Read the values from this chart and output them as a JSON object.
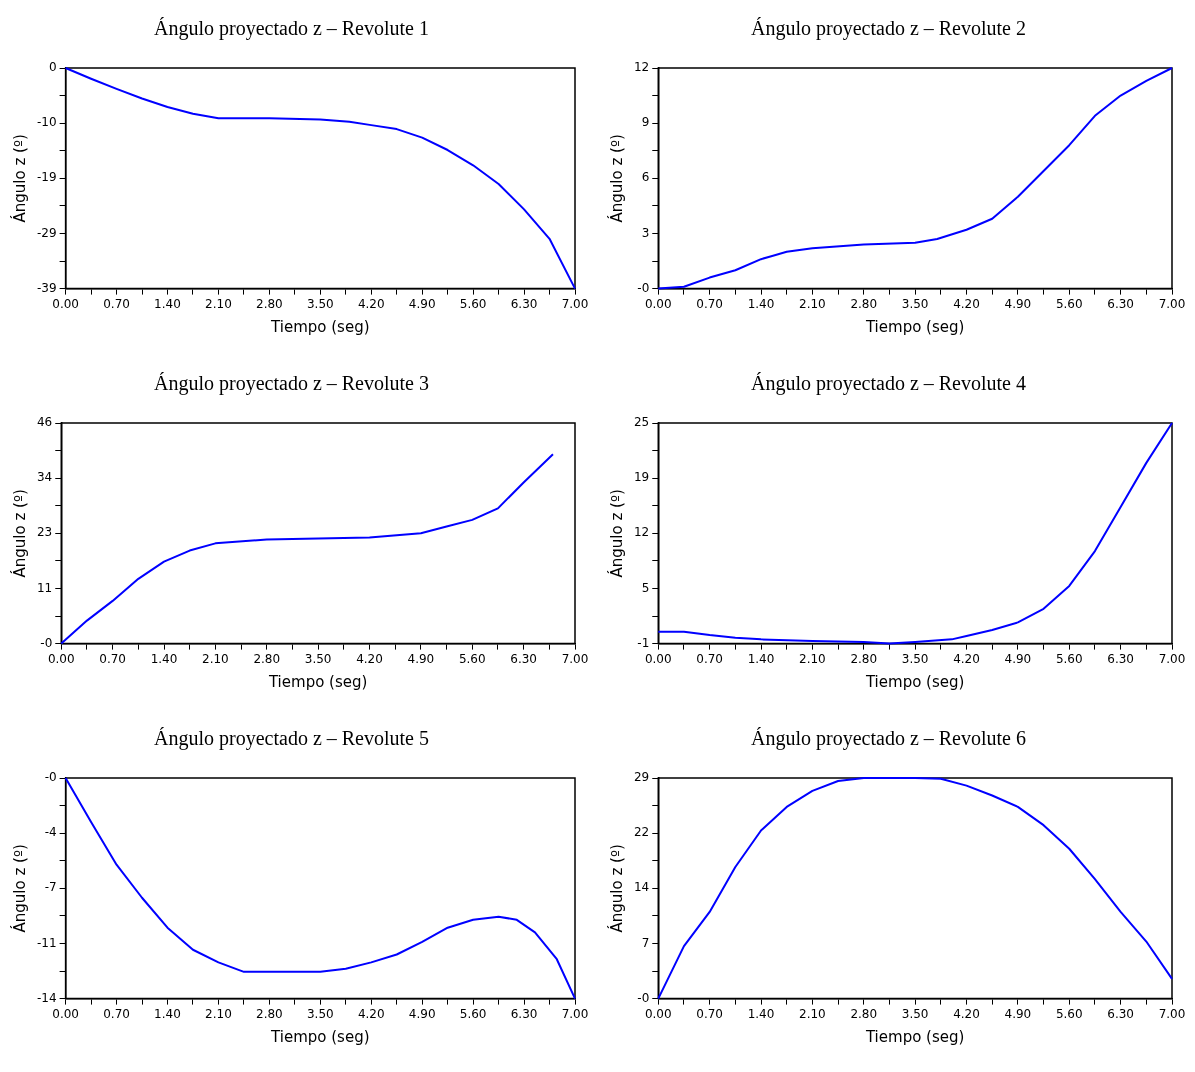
{
  "chart_data": [
    {
      "type": "line",
      "title": "Ángulo proyectado z – Revolute 1",
      "xlabel": "Tiempo (seg)",
      "ylabel": "Ángulo z (º)",
      "color": "#0000ff",
      "marker": "none",
      "grid": false,
      "x": [
        0,
        0.35,
        0.7,
        1.05,
        1.4,
        1.75,
        2.1,
        2.8,
        3.5,
        3.9,
        4.2,
        4.55,
        4.9,
        5.25,
        5.6,
        5.95,
        6.3,
        6.65,
        7
      ],
      "values": [
        0,
        -1.9,
        -3.7,
        -5.4,
        -6.9,
        -8.1,
        -8.9,
        -8.9,
        -9.1,
        -9.5,
        -10.1,
        -10.8,
        -12.3,
        -14.5,
        -17.2,
        -20.5,
        -25,
        -30.2,
        -39
      ],
      "xlim": [
        0,
        7
      ],
      "ylim": [
        -39,
        0
      ],
      "xticks": [
        {
          "value": 0,
          "label": "0.00"
        },
        {
          "value": 0.35,
          "label": null
        },
        {
          "value": 0.7,
          "label": "0.70"
        },
        {
          "value": 1.05,
          "label": null
        },
        {
          "value": 1.4,
          "label": "1.40"
        },
        {
          "value": 1.75,
          "label": null
        },
        {
          "value": 2.1,
          "label": "2.10"
        },
        {
          "value": 2.45,
          "label": null
        },
        {
          "value": 2.8,
          "label": "2.80"
        },
        {
          "value": 3.15,
          "label": null
        },
        {
          "value": 3.5,
          "label": "3.50"
        },
        {
          "value": 3.85,
          "label": null
        },
        {
          "value": 4.2,
          "label": "4.20"
        },
        {
          "value": 4.55,
          "label": null
        },
        {
          "value": 4.9,
          "label": "4.90"
        },
        {
          "value": 5.25,
          "label": null
        },
        {
          "value": 5.6,
          "label": "5.60"
        },
        {
          "value": 5.95,
          "label": null
        },
        {
          "value": 6.3,
          "label": "6.30"
        },
        {
          "value": 6.65,
          "label": null
        },
        {
          "value": 7,
          "label": "7.00"
        }
      ],
      "yticks": [
        {
          "value": -39,
          "label": "-39"
        },
        {
          "value": -34.125,
          "label": null
        },
        {
          "value": -29.25,
          "label": "-29"
        },
        {
          "value": -24.375,
          "label": null
        },
        {
          "value": -19.5,
          "label": "-19"
        },
        {
          "value": -14.625,
          "label": null
        },
        {
          "value": -9.75,
          "label": "-10"
        },
        {
          "value": -4.875,
          "label": null
        },
        {
          "value": 0,
          "label": "0"
        }
      ]
    },
    {
      "type": "line",
      "title": "Ángulo proyectado z – Revolute 2",
      "xlabel": "Tiempo (seg)",
      "ylabel": "Ángulo z (º)",
      "color": "#0000ff",
      "marker": "none",
      "grid": false,
      "x": [
        0,
        0.35,
        0.7,
        1.05,
        1.4,
        1.75,
        2.1,
        2.8,
        3.5,
        3.8,
        4.2,
        4.55,
        4.9,
        5.25,
        5.6,
        5.95,
        6.3,
        6.65,
        7
      ],
      "values": [
        0,
        0.1,
        0.6,
        1.0,
        1.6,
        2.0,
        2.2,
        2.4,
        2.5,
        2.7,
        3.2,
        3.8,
        5.0,
        6.4,
        7.8,
        9.4,
        10.5,
        11.3,
        12
      ],
      "xlim": [
        0,
        7
      ],
      "ylim": [
        0,
        12
      ],
      "xticks": [
        {
          "value": 0,
          "label": "0.00"
        },
        {
          "value": 0.35,
          "label": null
        },
        {
          "value": 0.7,
          "label": "0.70"
        },
        {
          "value": 1.05,
          "label": null
        },
        {
          "value": 1.4,
          "label": "1.40"
        },
        {
          "value": 1.75,
          "label": null
        },
        {
          "value": 2.1,
          "label": "2.10"
        },
        {
          "value": 2.45,
          "label": null
        },
        {
          "value": 2.8,
          "label": "2.80"
        },
        {
          "value": 3.15,
          "label": null
        },
        {
          "value": 3.5,
          "label": "3.50"
        },
        {
          "value": 3.85,
          "label": null
        },
        {
          "value": 4.2,
          "label": "4.20"
        },
        {
          "value": 4.55,
          "label": null
        },
        {
          "value": 4.9,
          "label": "4.90"
        },
        {
          "value": 5.25,
          "label": null
        },
        {
          "value": 5.6,
          "label": "5.60"
        },
        {
          "value": 5.95,
          "label": null
        },
        {
          "value": 6.3,
          "label": "6.30"
        },
        {
          "value": 6.65,
          "label": null
        },
        {
          "value": 7,
          "label": "7.00"
        }
      ],
      "yticks": [
        {
          "value": 0,
          "label": "-0"
        },
        {
          "value": 1.5,
          "label": null
        },
        3,
        {
          "value": 4.5,
          "label": null
        },
        6,
        {
          "value": 7.5,
          "label": null
        },
        9,
        {
          "value": 10.5,
          "label": null
        },
        12
      ]
    },
    {
      "type": "line",
      "title": "Ángulo proyectado z – Revolute 3",
      "xlabel": "Tiempo (seg)",
      "ylabel": "Ángulo z (º)",
      "color": "#0000ff",
      "marker": "none",
      "grid": false,
      "x": [
        0,
        0.35,
        0.7,
        1.05,
        1.4,
        1.75,
        2.1,
        2.8,
        3.5,
        4.2,
        4.9,
        5.25,
        5.6,
        5.95,
        6.3,
        6.7
      ],
      "values": [
        0,
        4.8,
        8.9,
        13.5,
        17.1,
        19.4,
        20.9,
        21.7,
        21.9,
        22.1,
        23.0,
        24.4,
        25.8,
        28.2,
        33.6,
        39.5
      ],
      "xlim": [
        0,
        7
      ],
      "ylim": [
        0,
        46
      ],
      "xticks": [
        {
          "value": 0,
          "label": "0.00"
        },
        {
          "value": 0.35,
          "label": null
        },
        {
          "value": 0.7,
          "label": "0.70"
        },
        {
          "value": 1.05,
          "label": null
        },
        {
          "value": 1.4,
          "label": "1.40"
        },
        {
          "value": 1.75,
          "label": null
        },
        {
          "value": 2.1,
          "label": "2.10"
        },
        {
          "value": 2.45,
          "label": null
        },
        {
          "value": 2.8,
          "label": "2.80"
        },
        {
          "value": 3.15,
          "label": null
        },
        {
          "value": 3.5,
          "label": "3.50"
        },
        {
          "value": 3.85,
          "label": null
        },
        {
          "value": 4.2,
          "label": "4.20"
        },
        {
          "value": 4.55,
          "label": null
        },
        {
          "value": 4.9,
          "label": "4.90"
        },
        {
          "value": 5.25,
          "label": null
        },
        {
          "value": 5.6,
          "label": "5.60"
        },
        {
          "value": 5.95,
          "label": null
        },
        {
          "value": 6.3,
          "label": "6.30"
        },
        {
          "value": 6.65,
          "label": null
        },
        {
          "value": 7,
          "label": "7.00"
        }
      ],
      "yticks": [
        {
          "value": 0,
          "label": "-0"
        },
        {
          "value": 5.75,
          "label": null
        },
        {
          "value": 11.5,
          "label": "11"
        },
        {
          "value": 17.25,
          "label": null
        },
        23,
        {
          "value": 28.75,
          "label": null
        },
        {
          "value": 34.5,
          "label": "34"
        },
        {
          "value": 40.25,
          "label": null
        },
        46
      ]
    },
    {
      "type": "line",
      "title": "Ángulo proyectado z – Revolute 4",
      "xlabel": "Tiempo (seg)",
      "ylabel": "Ángulo z (º)",
      "color": "#0000ff",
      "marker": "none",
      "grid": false,
      "x": [
        0,
        0.35,
        0.7,
        1.05,
        1.4,
        2.1,
        2.8,
        3.15,
        3.5,
        4.0,
        4.2,
        4.55,
        4.9,
        5.25,
        5.6,
        5.95,
        6.3,
        6.65,
        7
      ],
      "values": [
        0.4,
        0.4,
        0.0,
        -0.3,
        -0.5,
        -0.7,
        -0.8,
        -1.0,
        -0.8,
        -0.5,
        -0.1,
        0.6,
        1.5,
        3.1,
        5.8,
        9.9,
        15.1,
        20.3,
        25
      ],
      "xlim": [
        0,
        7
      ],
      "ylim": [
        -1,
        25
      ],
      "xticks": [
        {
          "value": 0,
          "label": "0.00"
        },
        {
          "value": 0.35,
          "label": null
        },
        {
          "value": 0.7,
          "label": "0.70"
        },
        {
          "value": 1.05,
          "label": null
        },
        {
          "value": 1.4,
          "label": "1.40"
        },
        {
          "value": 1.75,
          "label": null
        },
        {
          "value": 2.1,
          "label": "2.10"
        },
        {
          "value": 2.45,
          "label": null
        },
        {
          "value": 2.8,
          "label": "2.80"
        },
        {
          "value": 3.15,
          "label": null
        },
        {
          "value": 3.5,
          "label": "3.50"
        },
        {
          "value": 3.85,
          "label": null
        },
        {
          "value": 4.2,
          "label": "4.20"
        },
        {
          "value": 4.55,
          "label": null
        },
        {
          "value": 4.9,
          "label": "4.90"
        },
        {
          "value": 5.25,
          "label": null
        },
        {
          "value": 5.6,
          "label": "5.60"
        },
        {
          "value": 5.95,
          "label": null
        },
        {
          "value": 6.3,
          "label": "6.30"
        },
        {
          "value": 6.65,
          "label": null
        },
        {
          "value": 7,
          "label": "7.00"
        }
      ],
      "yticks": [
        -1,
        {
          "value": 2.25,
          "label": null
        },
        {
          "value": 5.5,
          "label": "5"
        },
        {
          "value": 8.75,
          "label": null
        },
        12,
        {
          "value": 15.25,
          "label": null
        },
        {
          "value": 18.5,
          "label": "19"
        },
        {
          "value": 21.75,
          "label": null
        },
        25
      ]
    },
    {
      "type": "line",
      "title": "Ángulo proyectado z – Revolute 5",
      "xlabel": "Tiempo (seg)",
      "ylabel": "Ángulo z (º)",
      "color": "#0000ff",
      "marker": "none",
      "grid": false,
      "x": [
        0,
        0.35,
        0.7,
        1.05,
        1.4,
        1.75,
        2.1,
        2.45,
        2.8,
        3.5,
        3.85,
        4.2,
        4.55,
        4.9,
        5.25,
        5.6,
        5.95,
        6.2,
        6.45,
        6.75,
        7
      ],
      "values": [
        0,
        -2.8,
        -5.5,
        -7.6,
        -9.5,
        -10.9,
        -11.7,
        -12.3,
        -12.3,
        -12.3,
        -12.1,
        -11.7,
        -11.2,
        -10.4,
        -9.5,
        -9.0,
        -8.8,
        -9.0,
        -9.8,
        -11.5,
        -14
      ],
      "xlim": [
        0,
        7
      ],
      "ylim": [
        -14,
        0
      ],
      "xticks": [
        {
          "value": 0,
          "label": "0.00"
        },
        {
          "value": 0.35,
          "label": null
        },
        {
          "value": 0.7,
          "label": "0.70"
        },
        {
          "value": 1.05,
          "label": null
        },
        {
          "value": 1.4,
          "label": "1.40"
        },
        {
          "value": 1.75,
          "label": null
        },
        {
          "value": 2.1,
          "label": "2.10"
        },
        {
          "value": 2.45,
          "label": null
        },
        {
          "value": 2.8,
          "label": "2.80"
        },
        {
          "value": 3.15,
          "label": null
        },
        {
          "value": 3.5,
          "label": "3.50"
        },
        {
          "value": 3.85,
          "label": null
        },
        {
          "value": 4.2,
          "label": "4.20"
        },
        {
          "value": 4.55,
          "label": null
        },
        {
          "value": 4.9,
          "label": "4.90"
        },
        {
          "value": 5.25,
          "label": null
        },
        {
          "value": 5.6,
          "label": "5.60"
        },
        {
          "value": 5.95,
          "label": null
        },
        {
          "value": 6.3,
          "label": "6.30"
        },
        {
          "value": 6.65,
          "label": null
        },
        {
          "value": 7,
          "label": "7.00"
        }
      ],
      "yticks": [
        -14,
        {
          "value": -12.25,
          "label": null
        },
        {
          "value": -10.5,
          "label": "-11"
        },
        {
          "value": -8.75,
          "label": null
        },
        -7,
        {
          "value": -5.25,
          "label": null
        },
        {
          "value": -3.5,
          "label": "-4"
        },
        {
          "value": -1.75,
          "label": null
        },
        {
          "value": 0,
          "label": "-0"
        }
      ]
    },
    {
      "type": "line",
      "title": "Ángulo proyectado z – Revolute 6",
      "xlabel": "Tiempo (seg)",
      "ylabel": "Ángulo z (º)",
      "color": "#0000ff",
      "marker": "none",
      "grid": false,
      "x": [
        0,
        0.35,
        0.7,
        1.05,
        1.4,
        1.75,
        2.1,
        2.45,
        2.8,
        3.5,
        3.85,
        4.2,
        4.55,
        4.9,
        5.25,
        5.6,
        5.95,
        6.3,
        6.65,
        7
      ],
      "values": [
        0,
        6.9,
        11.4,
        17.3,
        22.1,
        25.2,
        27.3,
        28.6,
        29,
        29,
        28.9,
        28,
        26.7,
        25.2,
        22.8,
        19.7,
        15.7,
        11.4,
        7.5,
        2.6
      ],
      "xlim": [
        0,
        7
      ],
      "ylim": [
        0,
        29
      ],
      "xticks": [
        {
          "value": 0,
          "label": "0.00"
        },
        {
          "value": 0.35,
          "label": null
        },
        {
          "value": 0.7,
          "label": "0.70"
        },
        {
          "value": 1.05,
          "label": null
        },
        {
          "value": 1.4,
          "label": "1.40"
        },
        {
          "value": 1.75,
          "label": null
        },
        {
          "value": 2.1,
          "label": "2.10"
        },
        {
          "value": 2.45,
          "label": null
        },
        {
          "value": 2.8,
          "label": "2.80"
        },
        {
          "value": 3.15,
          "label": null
        },
        {
          "value": 3.5,
          "label": "3.50"
        },
        {
          "value": 3.85,
          "label": null
        },
        {
          "value": 4.2,
          "label": "4.20"
        },
        {
          "value": 4.55,
          "label": null
        },
        {
          "value": 4.9,
          "label": "4.90"
        },
        {
          "value": 5.25,
          "label": null
        },
        {
          "value": 5.6,
          "label": "5.60"
        },
        {
          "value": 5.95,
          "label": null
        },
        {
          "value": 6.3,
          "label": "6.30"
        },
        {
          "value": 6.65,
          "label": null
        },
        {
          "value": 7,
          "label": "7.00"
        }
      ],
      "yticks": [
        {
          "value": 0,
          "label": "-0"
        },
        {
          "value": 3.625,
          "label": null
        },
        {
          "value": 7.25,
          "label": "7"
        },
        {
          "value": 10.875,
          "label": null
        },
        {
          "value": 14.5,
          "label": "14"
        },
        {
          "value": 18.125,
          "label": null
        },
        {
          "value": 21.75,
          "label": "22"
        },
        {
          "value": 25.375,
          "label": null
        },
        29
      ]
    }
  ]
}
